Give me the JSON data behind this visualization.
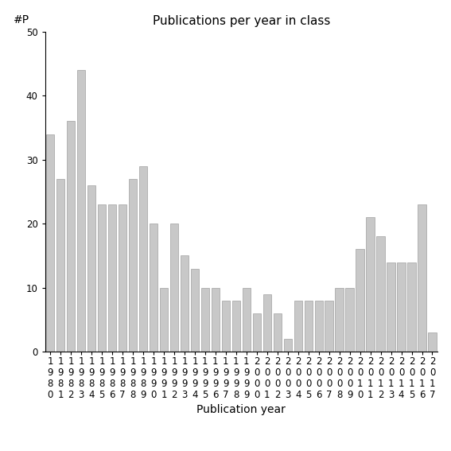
{
  "title": "Publications per year in class",
  "xlabel": "Publication year",
  "ylabel": "#P",
  "years": [
    "1980",
    "1981",
    "1982",
    "1983",
    "1984",
    "1985",
    "1986",
    "1987",
    "1988",
    "1989",
    "1990",
    "1991",
    "1992",
    "1993",
    "1994",
    "1995",
    "1996",
    "1997",
    "1998",
    "1999",
    "2000",
    "2001",
    "2002",
    "2003",
    "2004",
    "2005",
    "2006",
    "2007",
    "2008",
    "2009",
    "2010",
    "2011",
    "2012",
    "2013",
    "2014",
    "2015",
    "2016",
    "2017"
  ],
  "values": [
    34,
    27,
    36,
    44,
    26,
    23,
    23,
    23,
    27,
    29,
    20,
    10,
    20,
    15,
    13,
    10,
    10,
    8,
    8,
    10,
    6,
    9,
    6,
    2,
    8,
    8,
    8,
    8,
    10,
    10,
    16,
    21,
    18,
    14,
    14,
    14,
    23,
    3
  ],
  "bar_color": "#c8c8c8",
  "bar_edgecolor": "#a0a0a0",
  "ylim": [
    0,
    50
  ],
  "yticks": [
    0,
    10,
    20,
    30,
    40,
    50
  ],
  "background_color": "#ffffff",
  "title_fontsize": 11,
  "label_fontsize": 10,
  "tick_fontsize": 8.5
}
